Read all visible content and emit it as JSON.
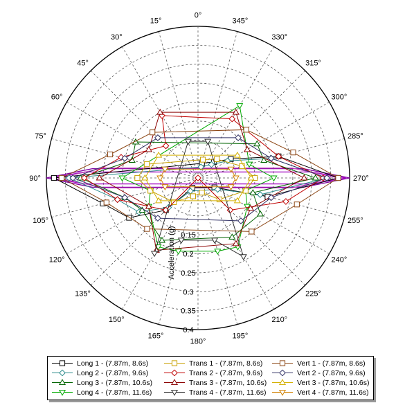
{
  "chart_data": {
    "type": "polar",
    "angle_labels": [
      "0°",
      "15°",
      "30°",
      "45°",
      "60°",
      "75°",
      "90°",
      "105°",
      "120°",
      "135°",
      "150°",
      "165°",
      "180°",
      "195°",
      "210°",
      "225°",
      "240°",
      "255°",
      "270°",
      "285°",
      "300°",
      "315°",
      "330°",
      "345°"
    ],
    "radial_axis": {
      "label": "Acceleration (g)",
      "ticks": [
        "0.15",
        "0.2",
        "0.25",
        "0.3",
        "0.35",
        "0.4"
      ],
      "range": [
        0,
        0.4
      ]
    },
    "series": [
      {
        "name": "Long 1 - (7.87m, 8.6s)",
        "color": "#000000",
        "marker": "square",
        "points": [
          [
            90,
            0.38
          ],
          [
            105,
            0.26
          ],
          [
            120,
            0.21
          ],
          [
            135,
            0.12
          ],
          [
            150,
            0.03
          ],
          [
            240,
            0.05
          ],
          [
            255,
            0.19
          ],
          [
            270,
            0.37
          ],
          [
            285,
            0.22
          ],
          [
            300,
            0.1
          ],
          [
            315,
            0.06
          ],
          [
            345,
            0.04
          ]
        ]
      },
      {
        "name": "Long 2 - (7.87m, 9.6s)",
        "color": "#2a8a8a",
        "marker": "diamond",
        "points": [
          [
            90,
            0.34
          ],
          [
            105,
            0.22
          ],
          [
            120,
            0.18
          ],
          [
            135,
            0.11
          ],
          [
            150,
            0.04
          ],
          [
            240,
            0.06
          ],
          [
            255,
            0.17
          ],
          [
            270,
            0.34
          ],
          [
            285,
            0.2
          ],
          [
            300,
            0.09
          ],
          [
            315,
            0.05
          ],
          [
            345,
            0.03
          ]
        ]
      },
      {
        "name": "Long 3 - (7.87m, 10.6s)",
        "color": "#006400",
        "marker": "triangle-up",
        "points": [
          [
            60,
            0.19
          ],
          [
            75,
            0.18
          ],
          [
            90,
            0.31
          ],
          [
            105,
            0.2
          ],
          [
            120,
            0.17
          ],
          [
            150,
            0.19
          ],
          [
            210,
            0.18
          ],
          [
            240,
            0.19
          ],
          [
            255,
            0.15
          ],
          [
            270,
            0.31
          ],
          [
            285,
            0.18
          ],
          [
            300,
            0.18
          ]
        ]
      },
      {
        "name": "Long 4 - (7.87m, 11.6s)",
        "color": "#00aa00",
        "marker": "triangle-down",
        "points": [
          [
            90,
            0.2
          ],
          [
            105,
            0.13
          ],
          [
            120,
            0.15
          ],
          [
            150,
            0.21
          ],
          [
            165,
            0.2
          ],
          [
            195,
            0.2
          ],
          [
            210,
            0.21
          ],
          [
            240,
            0.15
          ],
          [
            255,
            0.13
          ],
          [
            270,
            0.2
          ],
          [
            285,
            0.14
          ],
          [
            330,
            0.22
          ]
        ]
      },
      {
        "name": "Trans 1 - (7.87m, 8.6s)",
        "color": "#c8a000",
        "marker": "square",
        "points": [
          [
            75,
            0.14
          ],
          [
            90,
            0.16
          ],
          [
            105,
            0.13
          ],
          [
            135,
            0.09
          ],
          [
            165,
            0.05
          ],
          [
            195,
            0.04
          ],
          [
            225,
            0.08
          ],
          [
            255,
            0.13
          ],
          [
            270,
            0.15
          ],
          [
            285,
            0.12
          ],
          [
            315,
            0.07
          ],
          [
            345,
            0.05
          ]
        ]
      },
      {
        "name": "Trans 2 - (7.87m, 9.6s)",
        "color": "#c00000",
        "marker": "diamond",
        "points": [
          [
            30,
            0.19
          ],
          [
            45,
            0.12
          ],
          [
            75,
            0.21
          ],
          [
            90,
            0.3
          ],
          [
            105,
            0.22
          ],
          [
            135,
            0.12
          ],
          [
            180,
            0.0
          ],
          [
            225,
            0.12
          ],
          [
            255,
            0.24
          ],
          [
            270,
            0.33
          ],
          [
            285,
            0.22
          ],
          [
            330,
            0.18
          ]
        ]
      },
      {
        "name": "Trans 3 - (7.87m, 10.6s)",
        "color": "#8b0000",
        "marker": "triangle-up",
        "points": [
          [
            30,
            0.2
          ],
          [
            60,
            0.15
          ],
          [
            90,
            0.26
          ],
          [
            120,
            0.15
          ],
          [
            150,
            0.22
          ],
          [
            210,
            0.2
          ],
          [
            240,
            0.16
          ],
          [
            270,
            0.28
          ],
          [
            300,
            0.15
          ],
          [
            330,
            0.2
          ]
        ]
      },
      {
        "name": "Trans 4 - (7.87m, 11.6s)",
        "color": "#333333",
        "marker": "triangle-down",
        "points": [
          [
            150,
            0.23
          ],
          [
            165,
            0.17
          ],
          [
            195,
            0.17
          ],
          [
            210,
            0.24
          ],
          [
            345,
            0.1
          ],
          [
            15,
            0.1
          ]
        ]
      },
      {
        "name": "Vert 1 - (7.87m, 8.6s)",
        "color": "#8b4513",
        "marker": "square",
        "points": [
          [
            45,
            0.17
          ],
          [
            75,
            0.24
          ],
          [
            90,
            0.36
          ],
          [
            105,
            0.25
          ],
          [
            135,
            0.19
          ],
          [
            225,
            0.2
          ],
          [
            255,
            0.27
          ],
          [
            270,
            0.37
          ],
          [
            285,
            0.26
          ],
          [
            315,
            0.18
          ]
        ]
      },
      {
        "name": "Vert 2 - (7.87m, 9.6s)",
        "color": "#333366",
        "marker": "diamond",
        "points": [
          [
            45,
            0.15
          ],
          [
            75,
            0.2
          ],
          [
            90,
            0.33
          ],
          [
            105,
            0.2
          ],
          [
            135,
            0.15
          ],
          [
            225,
            0.16
          ],
          [
            255,
            0.2
          ],
          [
            270,
            0.34
          ],
          [
            285,
            0.2
          ],
          [
            315,
            0.15
          ]
        ]
      },
      {
        "name": "Vert 3 - (7.87m, 10.6s)",
        "color": "#d4b000",
        "marker": "triangle-up",
        "points": [
          [
            60,
            0.12
          ],
          [
            90,
            0.14
          ],
          [
            120,
            0.12
          ],
          [
            240,
            0.12
          ],
          [
            270,
            0.14
          ],
          [
            300,
            0.12
          ]
        ]
      },
      {
        "name": "Vert 4 - (7.87m, 11.6s)",
        "color": "#d08000",
        "marker": "triangle-down",
        "points": [
          [
            75,
            0.09
          ],
          [
            90,
            0.1
          ],
          [
            105,
            0.09
          ],
          [
            255,
            0.09
          ],
          [
            270,
            0.1
          ],
          [
            285,
            0.09
          ]
        ]
      }
    ],
    "envelopes": [
      {
        "color": "#8000a0",
        "points": [
          [
            90,
            0.4
          ],
          [
            95,
            0.28
          ],
          [
            265,
            0.28
          ],
          [
            270,
            0.4
          ],
          [
            275,
            0.28
          ],
          [
            85,
            0.28
          ]
        ]
      },
      {
        "color": "#a000c0",
        "points": [
          [
            90,
            0.39
          ],
          [
            93,
            0.3
          ],
          [
            267,
            0.3
          ],
          [
            270,
            0.39
          ],
          [
            273,
            0.3
          ],
          [
            87,
            0.3
          ]
        ]
      },
      {
        "color": "#c040c0",
        "points": [
          [
            90,
            0.37
          ],
          [
            96,
            0.25
          ],
          [
            264,
            0.25
          ],
          [
            270,
            0.37
          ],
          [
            276,
            0.25
          ],
          [
            84,
            0.25
          ]
        ]
      }
    ],
    "grid": true,
    "legend_position": "bottom"
  }
}
